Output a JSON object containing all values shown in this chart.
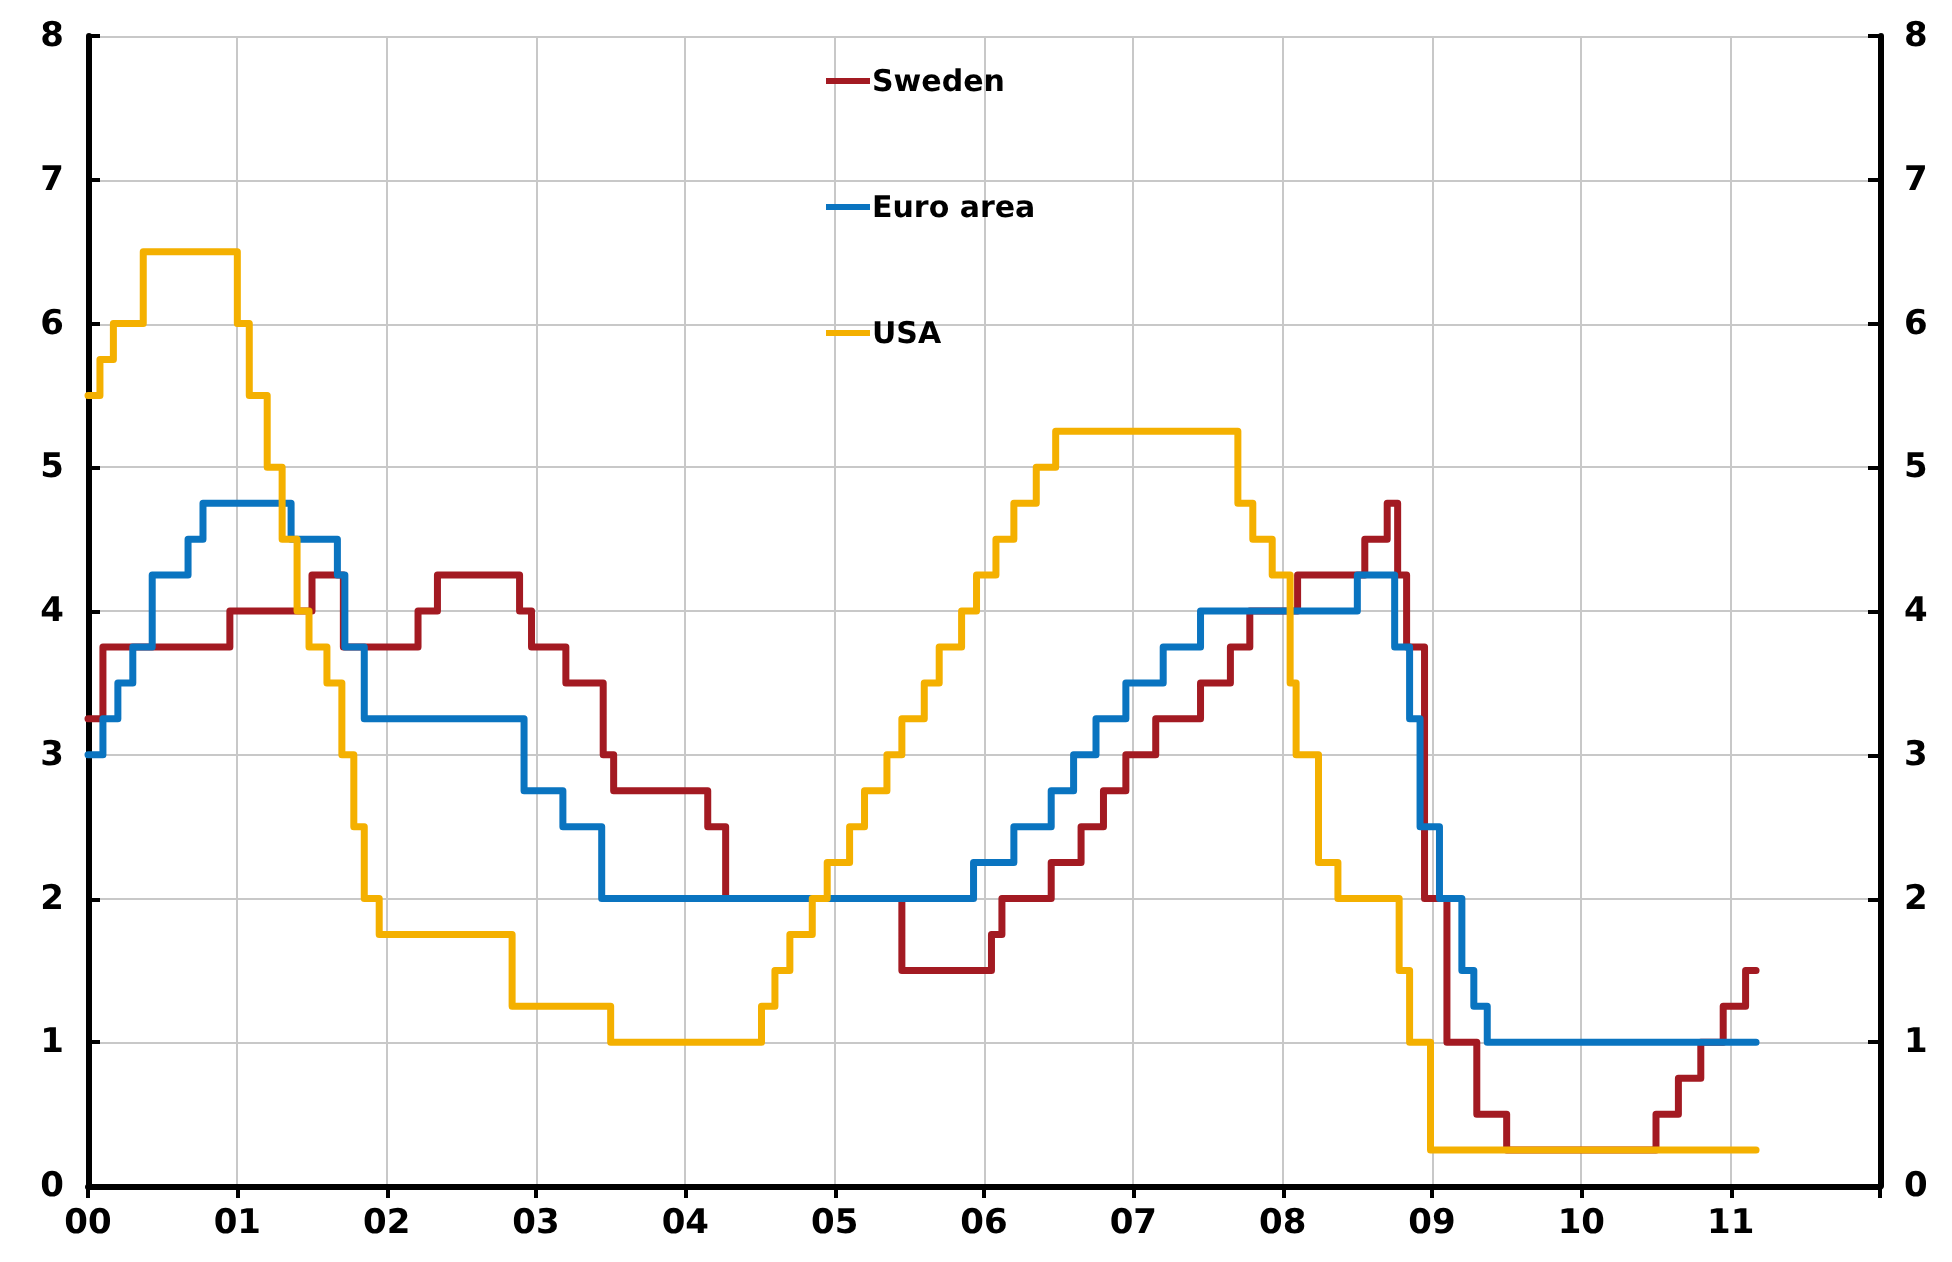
{
  "chart_data": {
    "type": "step",
    "xlim": [
      0,
      12
    ],
    "xticks": [
      {
        "value": 0,
        "label": "00"
      },
      {
        "value": 1,
        "label": "01"
      },
      {
        "value": 2,
        "label": "02"
      },
      {
        "value": 3,
        "label": "03"
      },
      {
        "value": 4,
        "label": "04"
      },
      {
        "value": 5,
        "label": "05"
      },
      {
        "value": 6,
        "label": "06"
      },
      {
        "value": 7,
        "label": "07"
      },
      {
        "value": 8,
        "label": "08"
      },
      {
        "value": 9,
        "label": "09"
      },
      {
        "value": 10,
        "label": "10"
      },
      {
        "value": 11,
        "label": "11"
      },
      {
        "value": 12,
        "label": null
      }
    ],
    "ylim": [
      0,
      8
    ],
    "yticks": [
      0,
      1,
      2,
      3,
      4,
      5,
      6,
      7,
      8
    ],
    "y2lim": [
      0,
      8
    ],
    "y2ticks": [
      0,
      1,
      2,
      3,
      4,
      5,
      6,
      7,
      8
    ],
    "grid": true,
    "legend": "top",
    "marker": "none",
    "line_style": "solid",
    "series": [
      {
        "name": "Sweden",
        "color": "#a31a22",
        "x": [
          0,
          0.1,
          0.95,
          1.5,
          1.71,
          2.21,
          2.34,
          2.89,
          2.97,
          3.2,
          3.45,
          3.52,
          4.15,
          4.27,
          5.45,
          6.05,
          6.12,
          6.45,
          6.65,
          6.8,
          6.95,
          7.15,
          7.45,
          7.65,
          7.78,
          8.1,
          8.55,
          8.7,
          8.77,
          8.83,
          8.95,
          9.1,
          9.3,
          9.5,
          10.5,
          10.65,
          10.8,
          10.95,
          11.1,
          11.17
        ],
        "values": [
          3.25,
          3.75,
          4.0,
          4.25,
          3.75,
          4.0,
          4.25,
          4.0,
          3.75,
          3.5,
          3.0,
          2.75,
          2.5,
          2.0,
          1.5,
          1.75,
          2.0,
          2.25,
          2.5,
          2.75,
          3.0,
          3.25,
          3.5,
          3.75,
          4.0,
          4.25,
          4.5,
          4.75,
          4.25,
          3.75,
          2.0,
          1.0,
          0.5,
          0.25,
          0.5,
          0.75,
          1.0,
          1.25,
          1.5,
          1.5
        ]
      },
      {
        "name": "Euro area",
        "color": "#0a74c0",
        "x": [
          0,
          0.1,
          0.2,
          0.3,
          0.43,
          0.67,
          0.77,
          1.36,
          1.67,
          1.72,
          1.85,
          2.92,
          3.18,
          3.44,
          5.93,
          6.2,
          6.45,
          6.6,
          6.75,
          6.95,
          7.2,
          7.45,
          8.5,
          8.75,
          8.85,
          8.92,
          9.05,
          9.2,
          9.28,
          9.37,
          11.17
        ],
        "values": [
          3.0,
          3.25,
          3.5,
          3.75,
          4.25,
          4.5,
          4.75,
          4.5,
          4.25,
          3.75,
          3.25,
          2.75,
          2.5,
          2.0,
          2.25,
          2.5,
          2.75,
          3.0,
          3.25,
          3.5,
          3.75,
          4.0,
          4.25,
          3.75,
          3.25,
          2.5,
          2.0,
          1.5,
          1.25,
          1.0,
          1.0
        ]
      },
      {
        "name": "USA",
        "color": "#f4b000",
        "x": [
          0,
          0.08,
          0.17,
          0.37,
          1.0,
          1.08,
          1.2,
          1.3,
          1.4,
          1.48,
          1.6,
          1.7,
          1.78,
          1.85,
          1.95,
          2.84,
          3.5,
          4.51,
          4.6,
          4.7,
          4.85,
          4.95,
          5.1,
          5.2,
          5.35,
          5.45,
          5.6,
          5.7,
          5.85,
          5.95,
          6.08,
          6.2,
          6.35,
          6.48,
          7.7,
          7.8,
          7.93,
          8.05,
          8.09,
          8.24,
          8.37,
          8.78,
          8.85,
          8.99,
          11.17
        ],
        "values": [
          5.5,
          5.75,
          6.0,
          6.5,
          6.0,
          5.5,
          5.0,
          4.5,
          4.0,
          3.75,
          3.5,
          3.0,
          2.5,
          2.0,
          1.75,
          1.25,
          1.0,
          1.25,
          1.5,
          1.75,
          2.0,
          2.25,
          2.5,
          2.75,
          3.0,
          3.25,
          3.5,
          3.75,
          4.0,
          4.25,
          4.5,
          4.75,
          5.0,
          5.25,
          4.75,
          4.5,
          4.25,
          3.5,
          3.0,
          2.25,
          2.0,
          1.5,
          1.0,
          0.25,
          0.25
        ]
      }
    ]
  }
}
